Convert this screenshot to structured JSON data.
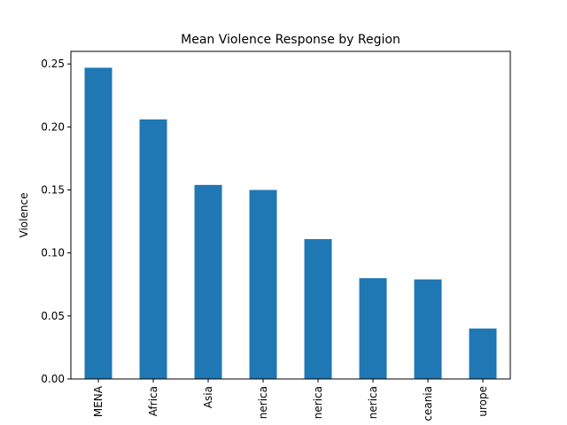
{
  "chart_data": {
    "type": "bar",
    "title": "Mean Violence Response by Region",
    "xlabel": "",
    "ylabel": "Violence",
    "categories": [
      "MENA",
      "Africa",
      "Asia",
      "nerica",
      "nerica",
      "nerica",
      "ceania",
      "urope"
    ],
    "values": [
      0.247,
      0.206,
      0.154,
      0.15,
      0.111,
      0.08,
      0.079,
      0.04
    ],
    "ylim": [
      0,
      0.26
    ],
    "yticks": [
      0.0,
      0.05,
      0.1,
      0.15,
      0.2,
      0.25
    ],
    "ytick_labels": [
      "0.00",
      "0.05",
      "0.10",
      "0.15",
      "0.20",
      "0.25"
    ],
    "grid": false,
    "legend": "none",
    "bar_color": "#1f77b4"
  }
}
